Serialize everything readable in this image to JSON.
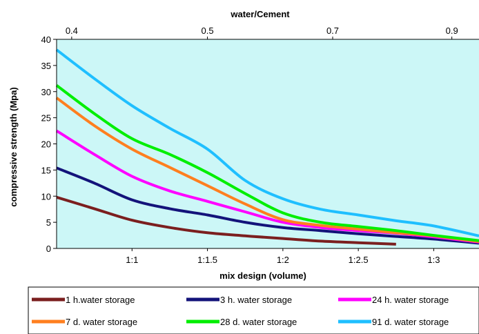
{
  "chart_data": {
    "type": "line",
    "title": "",
    "xlabel": "mix design (volume)",
    "ylabel": "compressive strength (Mpa)",
    "x2label": "water/Cement",
    "ylim": [
      0,
      40
    ],
    "yticks": [
      "0",
      "5",
      "10",
      "15",
      "20",
      "25",
      "30",
      "35",
      "40"
    ],
    "xlim": [
      0.5,
      3.3
    ],
    "xticks": [
      {
        "x": 1.0,
        "label": "1:1"
      },
      {
        "x": 1.5,
        "label": "1:1.5"
      },
      {
        "x": 2.0,
        "label": "1:2"
      },
      {
        "x": 2.5,
        "label": "1:2.5"
      },
      {
        "x": 3.0,
        "label": "1:3"
      }
    ],
    "x2ticks": [
      {
        "x": 0.6,
        "label": "0.4"
      },
      {
        "x": 1.5,
        "label": "0.5"
      },
      {
        "x": 2.33,
        "label": "0.7"
      },
      {
        "x": 3.12,
        "label": "0.9"
      }
    ],
    "plot_background": "#ccf7f7",
    "grid": false,
    "legend_position": "bottom",
    "series": [
      {
        "name": "1 h.water storage",
        "color": "#7b1f1f",
        "x": [
          0.5,
          0.75,
          1.0,
          1.25,
          1.5,
          1.75,
          2.0,
          2.25,
          2.5,
          2.75
        ],
        "y": [
          9.8,
          7.6,
          5.4,
          4.0,
          3.0,
          2.4,
          1.9,
          1.4,
          1.1,
          0.8
        ]
      },
      {
        "name": "3 h. water storage",
        "color": "#13137a",
        "x": [
          0.5,
          0.75,
          1.0,
          1.25,
          1.5,
          1.75,
          2.0,
          2.25,
          2.5,
          2.75,
          3.0,
          3.3
        ],
        "y": [
          15.4,
          12.5,
          9.3,
          7.6,
          6.4,
          5.0,
          4.0,
          3.4,
          2.8,
          2.3,
          1.8,
          1.0
        ]
      },
      {
        "name": "24 h. water storage",
        "color": "#ff00ff",
        "x": [
          0.5,
          0.75,
          1.0,
          1.25,
          1.5,
          1.75,
          2.0,
          2.25,
          2.5,
          2.75,
          3.0,
          3.3
        ],
        "y": [
          22.5,
          18.0,
          13.8,
          11.0,
          9.0,
          7.0,
          5.0,
          4.0,
          3.4,
          2.9,
          2.2,
          1.2
        ]
      },
      {
        "name": "7 d. water storage",
        "color": "#ff7f1f",
        "x": [
          0.5,
          0.75,
          1.0,
          1.25,
          1.5,
          1.75,
          2.0,
          2.25,
          2.5,
          2.75,
          3.0,
          3.3
        ],
        "y": [
          28.8,
          23.5,
          19.0,
          15.5,
          12.0,
          8.5,
          5.5,
          4.4,
          3.7,
          3.0,
          2.4,
          1.3
        ]
      },
      {
        "name": "28 d. water storage",
        "color": "#00ee00",
        "x": [
          0.5,
          0.75,
          1.0,
          1.25,
          1.5,
          1.75,
          2.0,
          2.25,
          2.5,
          2.75,
          3.0,
          3.3
        ],
        "y": [
          31.2,
          25.8,
          21.0,
          18.0,
          14.5,
          10.5,
          6.8,
          5.0,
          4.2,
          3.4,
          2.5,
          1.5
        ]
      },
      {
        "name": "91 d. water storage",
        "color": "#1fbfff",
        "x": [
          0.5,
          0.75,
          1.0,
          1.25,
          1.5,
          1.75,
          2.0,
          2.25,
          2.5,
          2.75,
          3.0,
          3.3
        ],
        "y": [
          38.0,
          32.5,
          27.3,
          23.0,
          19.0,
          13.0,
          9.5,
          7.5,
          6.4,
          5.3,
          4.3,
          2.4
        ]
      }
    ]
  }
}
